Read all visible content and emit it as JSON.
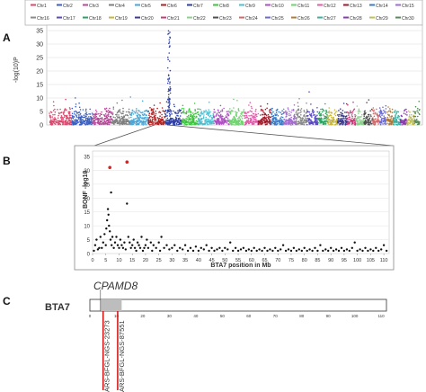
{
  "panels": {
    "a": "A",
    "b": "B",
    "c": "C"
  },
  "chart_data": [
    {
      "type": "scatter",
      "ylabel": "-log(10)P",
      "ylim": [
        0,
        35
      ],
      "yticks": [
        "0",
        "5",
        "10",
        "15",
        "20",
        "25",
        "30",
        "35"
      ],
      "grid": true,
      "legend_position": "top",
      "legend_entries": [
        "Chr1",
        "Chr2",
        "Chr3",
        "Chr4",
        "Chr5",
        "Chr6",
        "Chr7",
        "Chr8",
        "Chr9",
        "Chr10",
        "Chr11",
        "Chr12",
        "Chr13",
        "Chr14",
        "Chr15",
        "Chr16",
        "Chr17",
        "Chr18",
        "Chr19",
        "Chr20",
        "Chr21",
        "Chr22",
        "Chr23",
        "Chr24",
        "Chr25",
        "Chr26",
        "Chr27",
        "Chr28",
        "Chr29",
        "Chr30"
      ],
      "colors": [
        "#d94b6e",
        "#3b5fc0",
        "#b8479a",
        "#7f7f7f",
        "#4aa6d6",
        "#b22020",
        "#2e3fa3",
        "#3cc43c",
        "#4fbfd1",
        "#b04cc6",
        "#6fd36f",
        "#e05aa8",
        "#9e1b2a",
        "#3a7cc7",
        "#a26bd0",
        "#8a8a8a",
        "#5a4bc2",
        "#2ca25f",
        "#c7b63a",
        "#3b3b8f",
        "#c73a7a",
        "#8bd08b",
        "#4e4e4e",
        "#d06a6a",
        "#6a6ad0",
        "#b07a3a",
        "#3ab0a0",
        "#8a3ab0",
        "#c0c050",
        "#5a8a5a"
      ],
      "note": "Genome-wide Manhattan plot; peak on Chr7 reaching about 36"
    },
    {
      "type": "scatter",
      "xlabel": "BTA7 position in Mb",
      "ylabel": "BONF -log10",
      "xlim": [
        0,
        112
      ],
      "ylim": [
        0,
        35
      ],
      "xticks": [
        "0",
        "5",
        "10",
        "15",
        "20",
        "25",
        "30",
        "35",
        "40",
        "45",
        "50",
        "55",
        "60",
        "65",
        "70",
        "75",
        "80",
        "85",
        "90",
        "95",
        "100",
        "105",
        "110"
      ],
      "yticks": [
        "0",
        "5",
        "10",
        "15",
        "20",
        "25",
        "30",
        "35"
      ],
      "highlight_points": [
        {
          "x": 6.5,
          "y": 31
        },
        {
          "x": 13,
          "y": 33
        }
      ],
      "points": [
        [
          0.5,
          1
        ],
        [
          1,
          3
        ],
        [
          1.5,
          5
        ],
        [
          2,
          1.5
        ],
        [
          2.5,
          2
        ],
        [
          3,
          6
        ],
        [
          3.5,
          2
        ],
        [
          4,
          4
        ],
        [
          4.5,
          7
        ],
        [
          5,
          3
        ],
        [
          5.2,
          9
        ],
        [
          5.5,
          12
        ],
        [
          5.8,
          16
        ],
        [
          6,
          14
        ],
        [
          6.2,
          10
        ],
        [
          6.5,
          8
        ],
        [
          6.8,
          5
        ],
        [
          7,
          22
        ],
        [
          7.2,
          3
        ],
        [
          7.5,
          6
        ],
        [
          8,
          2
        ],
        [
          8.5,
          4
        ],
        [
          9,
          6
        ],
        [
          9.5,
          3
        ],
        [
          10,
          2
        ],
        [
          10.5,
          5
        ],
        [
          11,
          3
        ],
        [
          11.5,
          2
        ],
        [
          12,
          4
        ],
        [
          12.5,
          1.5
        ],
        [
          13,
          18
        ],
        [
          13.5,
          6
        ],
        [
          14,
          4
        ],
        [
          14.5,
          2
        ],
        [
          15,
          3
        ],
        [
          15.5,
          5
        ],
        [
          16,
          2
        ],
        [
          16.5,
          1
        ],
        [
          17,
          4
        ],
        [
          17.5,
          3
        ],
        [
          18,
          2
        ],
        [
          18.5,
          6
        ],
        [
          19,
          1
        ],
        [
          19.5,
          2
        ],
        [
          20,
          3
        ],
        [
          20.5,
          5
        ],
        [
          21,
          2
        ],
        [
          22,
          4
        ],
        [
          22.5,
          1
        ],
        [
          23,
          3
        ],
        [
          24,
          2
        ],
        [
          25,
          4
        ],
        [
          25.5,
          1
        ],
        [
          26,
          6
        ],
        [
          27,
          2
        ],
        [
          28,
          3
        ],
        [
          29,
          1.5
        ],
        [
          30,
          2
        ],
        [
          31,
          3
        ],
        [
          32,
          1
        ],
        [
          33,
          2
        ],
        [
          34,
          1.5
        ],
        [
          35,
          3
        ],
        [
          36,
          1
        ],
        [
          37,
          2
        ],
        [
          38,
          1
        ],
        [
          39,
          2.5
        ],
        [
          40,
          1
        ],
        [
          41,
          2
        ],
        [
          42,
          1.5
        ],
        [
          43,
          3
        ],
        [
          44,
          1
        ],
        [
          45,
          2
        ],
        [
          46,
          1
        ],
        [
          47,
          1.5
        ],
        [
          48,
          2
        ],
        [
          49,
          1
        ],
        [
          50,
          2
        ],
        [
          51,
          1.5
        ],
        [
          52,
          4
        ],
        [
          53,
          1
        ],
        [
          54,
          2
        ],
        [
          55,
          1
        ],
        [
          56,
          1.5
        ],
        [
          57,
          2
        ],
        [
          58,
          1
        ],
        [
          59,
          1.5
        ],
        [
          60,
          1
        ],
        [
          61,
          2
        ],
        [
          62,
          1
        ],
        [
          63,
          1.5
        ],
        [
          64,
          1
        ],
        [
          65,
          2
        ],
        [
          66,
          1
        ],
        [
          67,
          1.5
        ],
        [
          68,
          1
        ],
        [
          69,
          2
        ],
        [
          70,
          1
        ],
        [
          71,
          1.5
        ],
        [
          72,
          3
        ],
        [
          73,
          1
        ],
        [
          74,
          1.5
        ],
        [
          75,
          1
        ],
        [
          76,
          2
        ],
        [
          77,
          1
        ],
        [
          78,
          1.5
        ],
        [
          79,
          1
        ],
        [
          80,
          2
        ],
        [
          81,
          1
        ],
        [
          82,
          1.5
        ],
        [
          83,
          1
        ],
        [
          84,
          2
        ],
        [
          85,
          1
        ],
        [
          86,
          3
        ],
        [
          87,
          1
        ],
        [
          88,
          1.5
        ],
        [
          89,
          1
        ],
        [
          90,
          2
        ],
        [
          91,
          1
        ],
        [
          92,
          1.5
        ],
        [
          93,
          1
        ],
        [
          94,
          2
        ],
        [
          95,
          1
        ],
        [
          96,
          1.5
        ],
        [
          97,
          1
        ],
        [
          98,
          2
        ],
        [
          99,
          4
        ],
        [
          100,
          1
        ],
        [
          101,
          1.5
        ],
        [
          102,
          1
        ],
        [
          103,
          2
        ],
        [
          104,
          1
        ],
        [
          105,
          1.5
        ],
        [
          106,
          1
        ],
        [
          107,
          2
        ],
        [
          108,
          1
        ],
        [
          109,
          1.5
        ],
        [
          110,
          3
        ],
        [
          111,
          1
        ]
      ]
    },
    {
      "type": "chromosome-map",
      "chromosome_label": "BTA7",
      "gene_label": "CPAMD8",
      "xlim": [
        0,
        112
      ],
      "xticks": [
        "0",
        "10",
        "20",
        "30",
        "40",
        "50",
        "60",
        "70",
        "80",
        "90",
        "100",
        "110"
      ],
      "gene_region_mb": [
        4,
        12
      ],
      "markers": [
        {
          "name": "ARS-BFGL-NGS-23273",
          "position_mb": 5
        },
        {
          "name": "ARS-BFGL-NGS-87551",
          "position_mb": 10.5
        }
      ]
    }
  ]
}
